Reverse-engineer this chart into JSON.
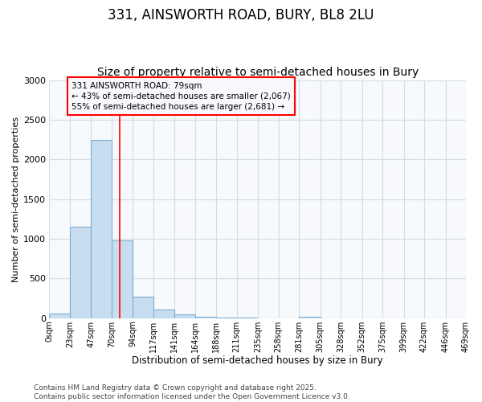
{
  "title": "331, AINSWORTH ROAD, BURY, BL8 2LU",
  "subtitle": "Size of property relative to semi-detached houses in Bury",
  "xlabel": "Distribution of semi-detached houses by size in Bury",
  "ylabel": "Number of semi-detached properties",
  "bin_edges": [
    0,
    23,
    47,
    70,
    94,
    117,
    141,
    164,
    188,
    211,
    235,
    258,
    281,
    305,
    328,
    352,
    375,
    399,
    422,
    446,
    469
  ],
  "bar_heights": [
    60,
    1150,
    2250,
    975,
    275,
    110,
    50,
    20,
    10,
    5,
    0,
    0,
    20,
    0,
    0,
    0,
    0,
    0,
    0,
    0
  ],
  "bar_color": "#c8ddf0",
  "bar_edge_color": "#7aafd4",
  "red_line_x": 79,
  "ylim": [
    0,
    3000
  ],
  "yticks": [
    0,
    500,
    1000,
    1500,
    2000,
    2500,
    3000
  ],
  "annotation_title": "331 AINSWORTH ROAD: 79sqm",
  "annotation_line1": "← 43% of semi-detached houses are smaller (2,067)",
  "annotation_line2": "55% of semi-detached houses are larger (2,681) →",
  "footer_line1": "Contains HM Land Registry data © Crown copyright and database right 2025.",
  "footer_line2": "Contains public sector information licensed under the Open Government Licence v3.0.",
  "bg_color": "#ffffff",
  "plot_bg_color": "#f7f9fc",
  "grid_color": "#d0dce8",
  "title_fontsize": 12,
  "subtitle_fontsize": 10,
  "xlabel_fontsize": 8.5,
  "ylabel_fontsize": 8,
  "tick_fontsize": 7,
  "footer_fontsize": 6.5,
  "annot_fontsize": 7.5
}
